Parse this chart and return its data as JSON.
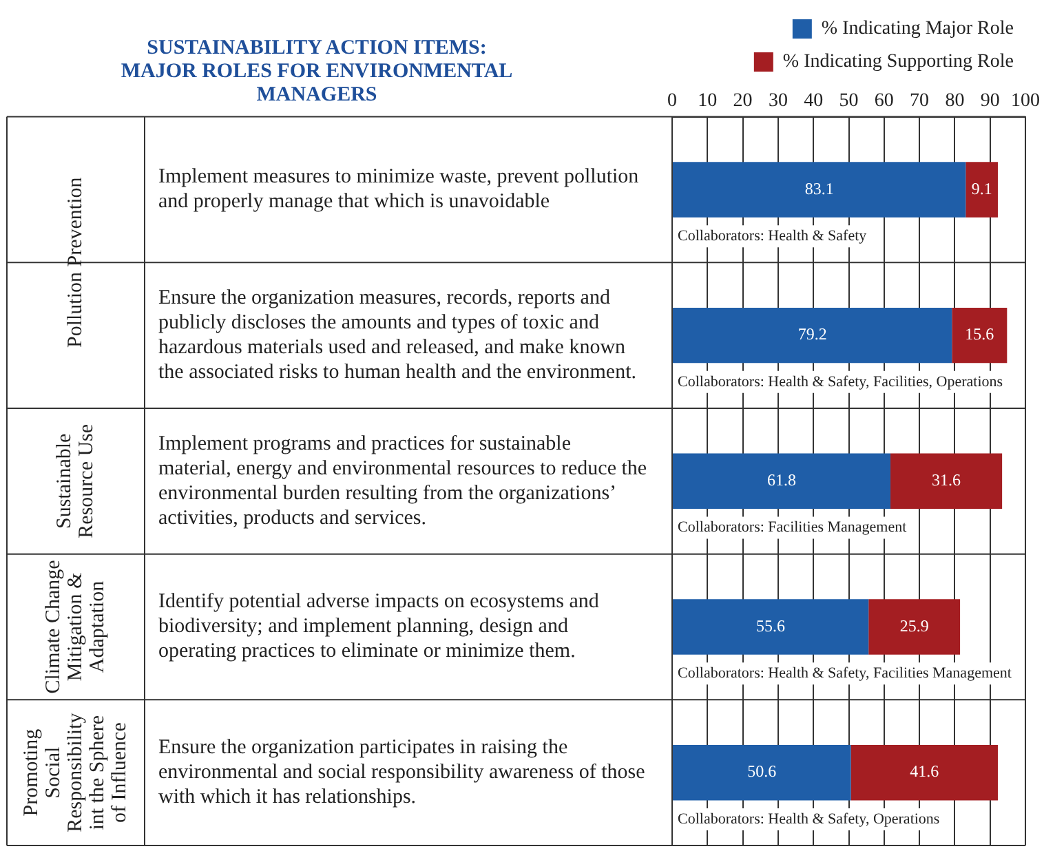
{
  "chart_data": {
    "type": "bar",
    "orientation": "horizontal",
    "stacked": true,
    "title": "SUSTAINABILITY ACTION ITEMS: MAJOR ROLES FOR ENVIRONMENTAL MANAGERS",
    "categories": [
      "Implement measures to minimize waste, prevent pollution and properly manage that which is unavoidable",
      "Ensure the organization measures, records, reports and publicly discloses the amounts and types of toxic and hazardous materials used and released, and make known the associated risks to human health and the environment.",
      "Implement programs and practices for sustainable material, energy and environmental resources to reduce the environmental burden resulting from the organizations’ activities, products and services.",
      "Identify potential adverse impacts on ecosystems and biodiversity; and implement planning, design and operating practices to eliminate or minimize them.",
      "Ensure the organization participates in raising the environmental and social responsibility awareness of those with which it has relationships."
    ],
    "series": [
      {
        "name": "% Indicating Major Role",
        "color": "#1f5ea8",
        "values": [
          83.1,
          79.2,
          61.8,
          55.6,
          50.6
        ]
      },
      {
        "name": "% Indicating Supporting Role",
        "color": "#a41e22",
        "values": [
          9.1,
          15.6,
          31.6,
          25.9,
          41.6
        ]
      }
    ],
    "xlim": [
      0,
      100
    ],
    "xticks": [
      0,
      10,
      20,
      30,
      40,
      50,
      60,
      70,
      80,
      90,
      100
    ],
    "grid": "x",
    "legend": "top right",
    "data_labels": true,
    "annotations": [
      "Collaborators: Health & Safety",
      "Collaborators: Health & Safety, Facilities, Operations",
      "Collaborators: Facilities Management",
      "Collaborators: Health & Safety, Facilities Management",
      "Collaborators: Health & Safety, Operations",
      "Pollution Prevention",
      "Sustainable Resource Use",
      "Climate Change Mitigation & Adaptation",
      "Promoting Social Responsibility int the Sphere of Influence"
    ]
  }
}
